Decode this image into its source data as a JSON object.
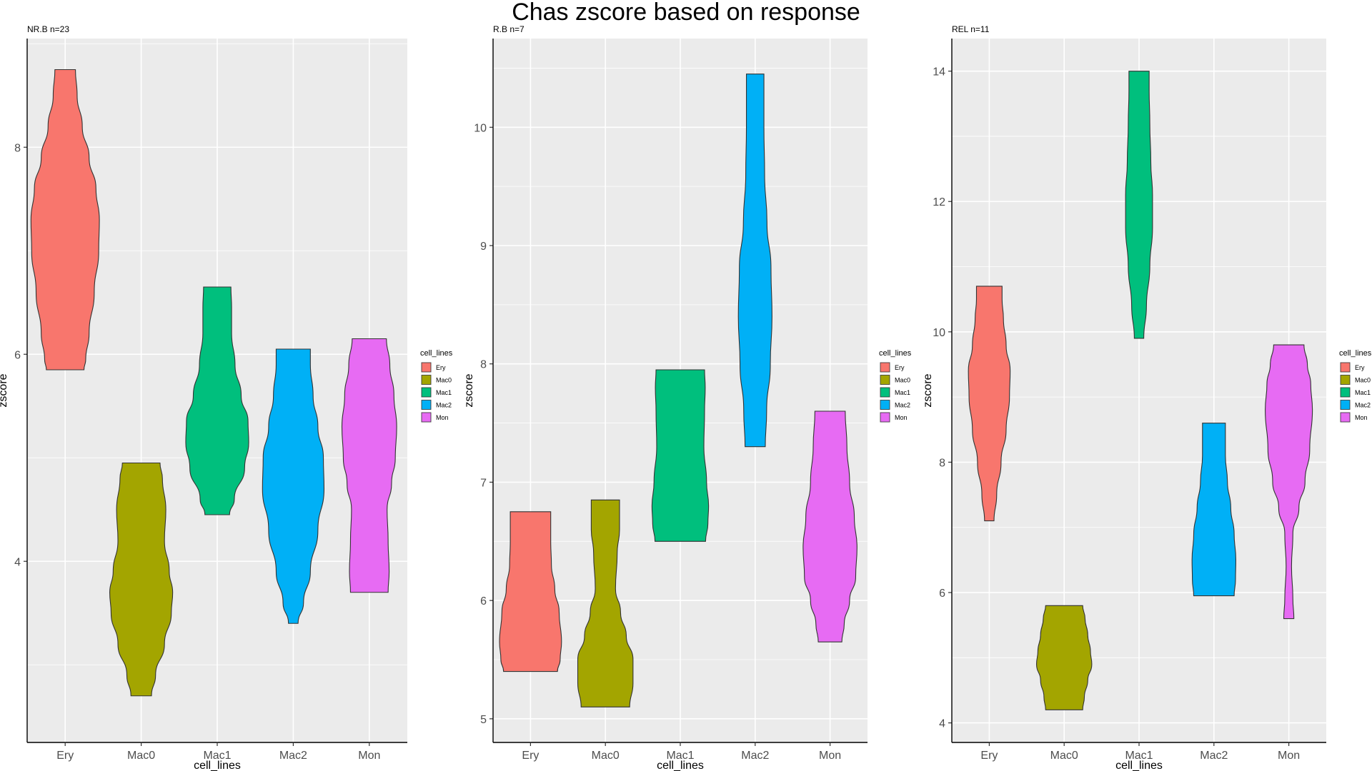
{
  "title": "Chas zscore based on response",
  "colors": {
    "Ery": "#F8766D",
    "Mac0": "#A3A500",
    "Mac1": "#00BF7D",
    "Mac2": "#00B0F6",
    "Mon": "#E76BF3",
    "panel_bg": "#EBEBEB",
    "grid": "#FFFFFF"
  },
  "chart_data": [
    {
      "type": "violin",
      "title": "NR.B n=23",
      "xlabel": "cell_lines",
      "ylabel": "zscore",
      "categories": [
        "Ery",
        "Mac0",
        "Mac1",
        "Mac2",
        "Mon"
      ],
      "ylim": [
        2.25,
        9.05
      ],
      "yticks": [
        4,
        6,
        8
      ],
      "legend": {
        "title": "cell_lines",
        "position": "right",
        "entries": [
          "Ery",
          "Mac0",
          "Mac1",
          "Mac2",
          "Mon"
        ]
      },
      "series": [
        {
          "name": "Ery",
          "min": 5.85,
          "max": 8.75,
          "profile": [
            [
              5.85,
              0.55
            ],
            [
              5.95,
              0.6
            ],
            [
              6.2,
              0.7
            ],
            [
              6.6,
              0.85
            ],
            [
              7.0,
              0.98
            ],
            [
              7.3,
              1.0
            ],
            [
              7.6,
              0.9
            ],
            [
              7.9,
              0.7
            ],
            [
              8.2,
              0.5
            ],
            [
              8.5,
              0.35
            ],
            [
              8.75,
              0.3
            ]
          ]
        },
        {
          "name": "Mac0",
          "min": 2.7,
          "max": 4.95,
          "profile": [
            [
              2.7,
              0.3
            ],
            [
              2.9,
              0.42
            ],
            [
              3.2,
              0.68
            ],
            [
              3.5,
              0.88
            ],
            [
              3.7,
              0.92
            ],
            [
              3.9,
              0.82
            ],
            [
              4.2,
              0.68
            ],
            [
              4.5,
              0.72
            ],
            [
              4.8,
              0.62
            ],
            [
              4.95,
              0.55
            ]
          ]
        },
        {
          "name": "Mac1",
          "min": 4.45,
          "max": 6.65,
          "profile": [
            [
              4.45,
              0.36
            ],
            [
              4.6,
              0.5
            ],
            [
              4.9,
              0.8
            ],
            [
              5.15,
              0.92
            ],
            [
              5.35,
              0.9
            ],
            [
              5.6,
              0.7
            ],
            [
              5.9,
              0.52
            ],
            [
              6.2,
              0.42
            ],
            [
              6.45,
              0.42
            ],
            [
              6.65,
              0.4
            ]
          ]
        },
        {
          "name": "Mac2",
          "min": 3.4,
          "max": 6.05,
          "profile": [
            [
              3.4,
              0.14
            ],
            [
              3.6,
              0.3
            ],
            [
              3.9,
              0.5
            ],
            [
              4.3,
              0.72
            ],
            [
              4.7,
              0.9
            ],
            [
              5.0,
              0.88
            ],
            [
              5.3,
              0.72
            ],
            [
              5.6,
              0.58
            ],
            [
              5.9,
              0.5
            ],
            [
              6.05,
              0.5
            ]
          ]
        },
        {
          "name": "Mon",
          "min": 3.7,
          "max": 6.15,
          "profile": [
            [
              3.7,
              0.55
            ],
            [
              3.9,
              0.58
            ],
            [
              4.2,
              0.55
            ],
            [
              4.5,
              0.52
            ],
            [
              4.75,
              0.65
            ],
            [
              5.0,
              0.76
            ],
            [
              5.3,
              0.8
            ],
            [
              5.6,
              0.72
            ],
            [
              5.9,
              0.6
            ],
            [
              6.15,
              0.5
            ]
          ]
        }
      ]
    },
    {
      "type": "violin",
      "title": "R.B n=7",
      "xlabel": "cell_lines",
      "ylabel": "zscore",
      "categories": [
        "Ery",
        "Mac0",
        "Mac1",
        "Mac2",
        "Mon"
      ],
      "ylim": [
        4.8,
        10.75
      ],
      "yticks": [
        5,
        6,
        7,
        8,
        9,
        10
      ],
      "legend": {
        "title": "cell_lines",
        "position": "right",
        "entries": [
          "Ery",
          "Mac0",
          "Mac1",
          "Mac2",
          "Mon"
        ]
      },
      "series": [
        {
          "name": "Ery",
          "min": 5.4,
          "max": 6.75,
          "profile": [
            [
              5.4,
              0.8
            ],
            [
              5.5,
              0.88
            ],
            [
              5.65,
              0.92
            ],
            [
              5.9,
              0.85
            ],
            [
              6.1,
              0.72
            ],
            [
              6.3,
              0.62
            ],
            [
              6.5,
              0.6
            ],
            [
              6.75,
              0.6
            ]
          ]
        },
        {
          "name": "Mac0",
          "min": 5.1,
          "max": 6.85,
          "profile": [
            [
              5.1,
              0.72
            ],
            [
              5.3,
              0.82
            ],
            [
              5.5,
              0.82
            ],
            [
              5.7,
              0.62
            ],
            [
              5.9,
              0.45
            ],
            [
              6.1,
              0.3
            ],
            [
              6.4,
              0.35
            ],
            [
              6.6,
              0.42
            ],
            [
              6.85,
              0.42
            ]
          ]
        },
        {
          "name": "Mac1",
          "min": 6.5,
          "max": 7.95,
          "profile": [
            [
              6.5,
              0.75
            ],
            [
              6.65,
              0.82
            ],
            [
              6.8,
              0.84
            ],
            [
              7.0,
              0.78
            ],
            [
              7.3,
              0.7
            ],
            [
              7.6,
              0.72
            ],
            [
              7.8,
              0.74
            ],
            [
              7.95,
              0.72
            ]
          ]
        },
        {
          "name": "Mac2",
          "min": 7.3,
          "max": 10.45,
          "profile": [
            [
              7.3,
              0.3
            ],
            [
              7.6,
              0.34
            ],
            [
              8.0,
              0.45
            ],
            [
              8.4,
              0.5
            ],
            [
              8.8,
              0.47
            ],
            [
              9.2,
              0.35
            ],
            [
              9.6,
              0.28
            ],
            [
              10.0,
              0.26
            ],
            [
              10.45,
              0.26
            ]
          ]
        },
        {
          "name": "Mon",
          "min": 5.65,
          "max": 7.6,
          "profile": [
            [
              5.65,
              0.35
            ],
            [
              5.8,
              0.42
            ],
            [
              6.0,
              0.58
            ],
            [
              6.2,
              0.76
            ],
            [
              6.45,
              0.8
            ],
            [
              6.7,
              0.72
            ],
            [
              7.0,
              0.58
            ],
            [
              7.3,
              0.5
            ],
            [
              7.6,
              0.45
            ]
          ]
        }
      ]
    },
    {
      "type": "violin",
      "title": "REL n=11",
      "xlabel": "cell_lines",
      "ylabel": "zscore",
      "categories": [
        "Ery",
        "Mac0",
        "Mac1",
        "Mac2",
        "Mon"
      ],
      "ylim": [
        3.7,
        14.5
      ],
      "yticks": [
        4,
        6,
        8,
        10,
        12,
        14
      ],
      "legend": {
        "title": "cell_lines",
        "position": "right",
        "entries": [
          "Ery",
          "Mac0",
          "Mac1",
          "Mac2",
          "Mon"
        ]
      },
      "series": [
        {
          "name": "Ery",
          "min": 7.1,
          "max": 10.7,
          "profile": [
            [
              7.1,
              0.14
            ],
            [
              7.5,
              0.22
            ],
            [
              8.0,
              0.35
            ],
            [
              8.5,
              0.5
            ],
            [
              9.0,
              0.6
            ],
            [
              9.4,
              0.62
            ],
            [
              9.8,
              0.5
            ],
            [
              10.2,
              0.42
            ],
            [
              10.5,
              0.38
            ],
            [
              10.7,
              0.38
            ]
          ]
        },
        {
          "name": "Mac0",
          "min": 4.2,
          "max": 5.8,
          "profile": [
            [
              4.2,
              0.55
            ],
            [
              4.4,
              0.6
            ],
            [
              4.65,
              0.7
            ],
            [
              4.9,
              0.82
            ],
            [
              5.1,
              0.78
            ],
            [
              5.35,
              0.7
            ],
            [
              5.6,
              0.62
            ],
            [
              5.8,
              0.55
            ]
          ]
        },
        {
          "name": "Mac1",
          "min": 9.9,
          "max": 14.0,
          "profile": [
            [
              9.9,
              0.14
            ],
            [
              10.4,
              0.22
            ],
            [
              11.0,
              0.32
            ],
            [
              11.6,
              0.4
            ],
            [
              12.1,
              0.4
            ],
            [
              12.6,
              0.35
            ],
            [
              13.2,
              0.32
            ],
            [
              13.7,
              0.3
            ],
            [
              14.0,
              0.3
            ]
          ]
        },
        {
          "name": "Mac2",
          "min": 5.95,
          "max": 8.6,
          "profile": [
            [
              5.95,
              0.6
            ],
            [
              6.2,
              0.64
            ],
            [
              6.5,
              0.65
            ],
            [
              6.9,
              0.6
            ],
            [
              7.3,
              0.5
            ],
            [
              7.7,
              0.4
            ],
            [
              8.1,
              0.34
            ],
            [
              8.4,
              0.34
            ],
            [
              8.6,
              0.34
            ]
          ]
        },
        {
          "name": "Mon",
          "min": 5.6,
          "max": 9.8,
          "profile": [
            [
              5.6,
              0.15
            ],
            [
              5.9,
              0.12
            ],
            [
              6.4,
              0.08
            ],
            [
              6.9,
              0.12
            ],
            [
              7.3,
              0.3
            ],
            [
              7.7,
              0.48
            ],
            [
              8.2,
              0.62
            ],
            [
              8.8,
              0.7
            ],
            [
              9.2,
              0.65
            ],
            [
              9.5,
              0.55
            ],
            [
              9.8,
              0.45
            ]
          ]
        }
      ]
    }
  ]
}
